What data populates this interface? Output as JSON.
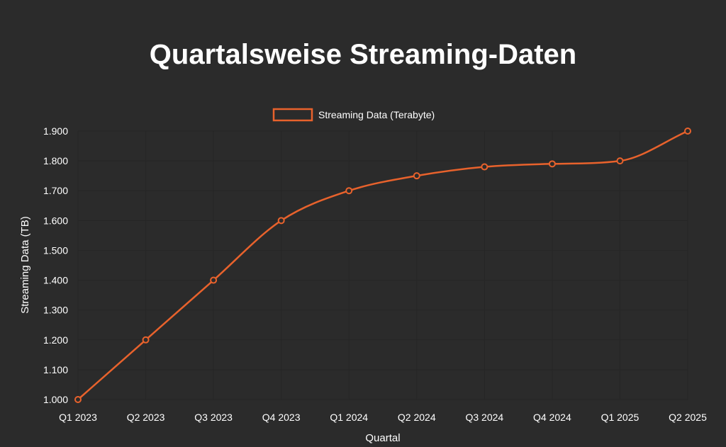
{
  "chart_data": {
    "type": "line",
    "title": "Quartalsweise Streaming-Daten",
    "xlabel": "Quartal",
    "ylabel": "Streaming Data (TB)",
    "categories": [
      "Q1 2023",
      "Q2 2023",
      "Q3 2023",
      "Q4 2023",
      "Q1 2024",
      "Q2 2024",
      "Q3 2024",
      "Q4 2024",
      "Q1 2025",
      "Q2 2025"
    ],
    "series": [
      {
        "name": "Streaming Data (Terabyte)",
        "values": [
          1000,
          1200,
          1400,
          1600,
          1700,
          1750,
          1780,
          1790,
          1800,
          1900
        ],
        "color": "#e8622c"
      }
    ],
    "ylim": [
      1000,
      1900
    ],
    "yticks": [
      1000,
      1100,
      1200,
      1300,
      1400,
      1500,
      1600,
      1700,
      1800,
      1900
    ],
    "ytick_labels": [
      "1.000",
      "1.100",
      "1.200",
      "1.300",
      "1.400",
      "1.500",
      "1.600",
      "1.700",
      "1.800",
      "1.900"
    ],
    "legend_position": "top-center",
    "grid": true
  },
  "colors": {
    "background": "#2b2b2b",
    "text": "#ffffff",
    "line": "#e8622c"
  }
}
